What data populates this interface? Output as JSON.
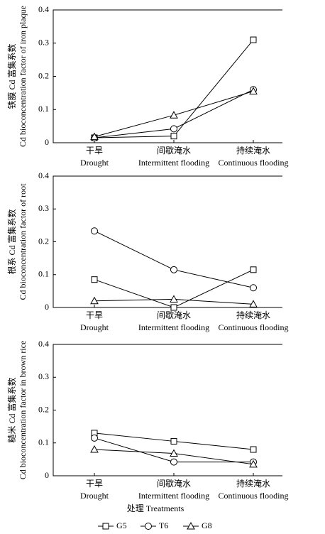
{
  "chart_data": [
    {
      "type": "line",
      "ylabel": [
        "铁膜 Cd 富集系数",
        "Cd bioconcentration factor of iron plaque"
      ],
      "categories": [
        "干旱",
        "间歇淹水",
        "持续淹水"
      ],
      "categories_en": [
        "Drought",
        "Intermittent flooding",
        "Continuous flooding"
      ],
      "series": [
        {
          "marker": "square",
          "values": [
            0.015,
            0.02,
            0.31
          ]
        },
        {
          "marker": "circle",
          "values": [
            0.015,
            0.042,
            0.16
          ]
        },
        {
          "marker": "triangle",
          "values": [
            0.018,
            0.083,
            0.155
          ]
        }
      ],
      "ylim": [
        0,
        0.4
      ],
      "yticks": [
        0,
        0.1,
        0.2,
        0.3,
        0.4
      ]
    },
    {
      "type": "line",
      "ylabel": [
        "根系 Cd 富集系数",
        "Cd bioconcentration factor of root"
      ],
      "categories": [
        "干旱",
        "间歇淹水",
        "持续淹水"
      ],
      "categories_en": [
        "Drought",
        "Intermittent flooding",
        "Continuous flooding"
      ],
      "series": [
        {
          "marker": "square",
          "values": [
            0.085,
            0,
            0.115
          ]
        },
        {
          "marker": "circle",
          "values": [
            0.233,
            0.115,
            0.06
          ]
        },
        {
          "marker": "triangle",
          "values": [
            0.02,
            0.025,
            0.01
          ]
        }
      ],
      "ylim": [
        0,
        0.4
      ],
      "yticks": [
        0,
        0.1,
        0.2,
        0.3,
        0.4
      ]
    },
    {
      "type": "line",
      "ylabel": [
        "糙米 Cd 富集系数",
        "Cd bioconcentration factor in brown rice"
      ],
      "categories": [
        "干旱",
        "间歇淹水",
        "持续淹水"
      ],
      "categories_en": [
        "Drought",
        "Intermittent flooding",
        "Continuous flooding"
      ],
      "xlabel": "处理 Treatments",
      "series": [
        {
          "marker": "square",
          "values": [
            0.13,
            0.105,
            0.08
          ]
        },
        {
          "marker": "circle",
          "values": [
            0.115,
            0.042,
            0.042
          ]
        },
        {
          "marker": "triangle",
          "values": [
            0.08,
            0.068,
            0.035
          ]
        }
      ],
      "ylim": [
        0,
        0.4
      ],
      "yticks": [
        0,
        0.1,
        0.2,
        0.3,
        0.4
      ]
    }
  ],
  "legend": [
    {
      "name": "G5",
      "marker": "square",
      "color": "#000000"
    },
    {
      "name": "T6",
      "marker": "circle",
      "color": "#000000"
    },
    {
      "name": "G8",
      "marker": "triangle",
      "color": "#000000"
    }
  ]
}
